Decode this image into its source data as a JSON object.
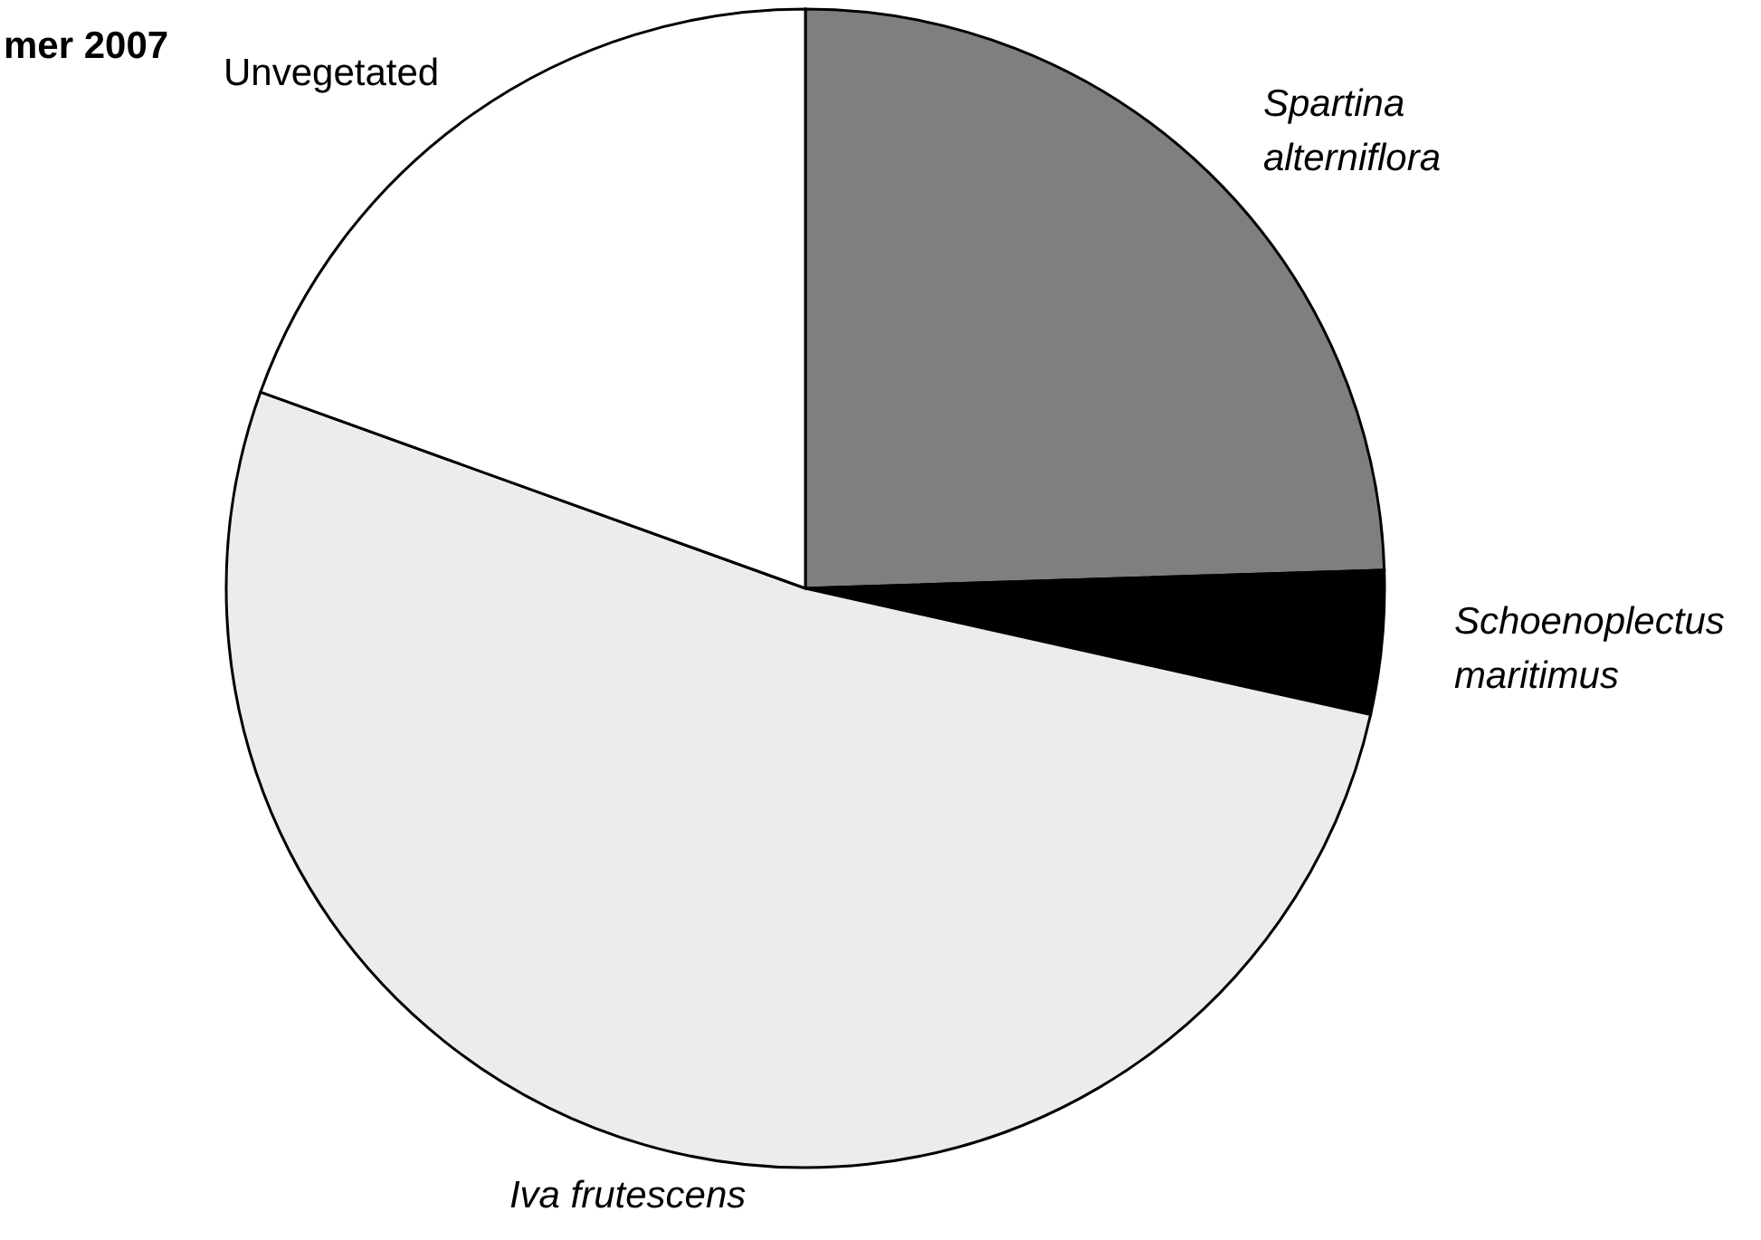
{
  "chart_data": {
    "type": "pie",
    "title": "mer 2007",
    "categories": [
      "Spartina alterniflora",
      "Schoenoplectus maritimus",
      "Iva frutescens",
      "Unvegetated"
    ],
    "values": [
      24.5,
      4,
      52,
      19.5
    ],
    "colors": [
      "#7f7f7f",
      "#000000",
      "#ececec",
      "#ffffff"
    ]
  }
}
